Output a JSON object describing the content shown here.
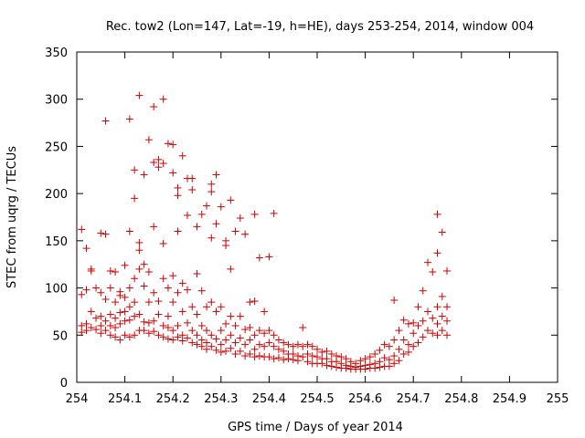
{
  "chart_data": {
    "type": "scatter",
    "title": "Rec. tow2 (Lon=147, Lat=-19, h=HE), days 253-254, 2014, window 004",
    "xlabel": "GPS time / Days of year 2014",
    "ylabel": "STEC from uqrg / TECUs",
    "xlim": [
      254,
      255
    ],
    "ylim": [
      0,
      350
    ],
    "x_ticks": [
      254,
      254.1,
      254.2,
      254.3,
      254.4,
      254.5,
      254.6,
      254.7,
      254.8,
      254.9,
      255
    ],
    "x_tick_labels": [
      "254",
      "254.1",
      "254.2",
      "254.3",
      "254.4",
      "254.5",
      "254.6",
      "254.7",
      "254.8",
      "254.9",
      "255"
    ],
    "y_ticks": [
      0,
      50,
      100,
      150,
      200,
      250,
      300,
      350
    ],
    "y_tick_labels": [
      "0",
      "50",
      "100",
      "150",
      "200",
      "250",
      "300",
      "350"
    ],
    "marker": "+",
    "color": "#cc0000",
    "grid": false,
    "legend": "none",
    "series": [
      {
        "points": [
          [
            254.01,
            162
          ],
          [
            254.01,
            93
          ],
          [
            254.01,
            60
          ],
          [
            254.01,
            53
          ],
          [
            254.02,
            142
          ],
          [
            254.02,
            98
          ],
          [
            254.02,
            62
          ],
          [
            254.02,
            55
          ],
          [
            254.03,
            120
          ],
          [
            254.03,
            118
          ],
          [
            254.03,
            75
          ],
          [
            254.03,
            58
          ],
          [
            254.04,
            100
          ],
          [
            254.04,
            68
          ],
          [
            254.04,
            56
          ],
          [
            254.05,
            158
          ],
          [
            254.05,
            95
          ],
          [
            254.05,
            70
          ],
          [
            254.05,
            60
          ],
          [
            254.05,
            52
          ],
          [
            254.06,
            277
          ],
          [
            254.06,
            157
          ],
          [
            254.06,
            88
          ],
          [
            254.06,
            65
          ],
          [
            254.06,
            55
          ],
          [
            254.07,
            118
          ],
          [
            254.07,
            100
          ],
          [
            254.07,
            72
          ],
          [
            254.07,
            60
          ],
          [
            254.07,
            50
          ],
          [
            254.08,
            117
          ],
          [
            254.08,
            85
          ],
          [
            254.08,
            68
          ],
          [
            254.08,
            58
          ],
          [
            254.08,
            48
          ],
          [
            254.09,
            96
          ],
          [
            254.09,
            92
          ],
          [
            254.09,
            74
          ],
          [
            254.09,
            62
          ],
          [
            254.09,
            45
          ],
          [
            254.1,
            124
          ],
          [
            254.1,
            90
          ],
          [
            254.1,
            75
          ],
          [
            254.1,
            65
          ],
          [
            254.1,
            50
          ],
          [
            254.11,
            279
          ],
          [
            254.11,
            160
          ],
          [
            254.11,
            100
          ],
          [
            254.11,
            80
          ],
          [
            254.11,
            66
          ],
          [
            254.11,
            48
          ],
          [
            254.12,
            225
          ],
          [
            254.12,
            195
          ],
          [
            254.12,
            110
          ],
          [
            254.12,
            85
          ],
          [
            254.12,
            70
          ],
          [
            254.12,
            50
          ],
          [
            254.13,
            304
          ],
          [
            254.13,
            148
          ],
          [
            254.13,
            140
          ],
          [
            254.13,
            120
          ],
          [
            254.13,
            72
          ],
          [
            254.13,
            55
          ],
          [
            254.14,
            220
          ],
          [
            254.14,
            125
          ],
          [
            254.14,
            102
          ],
          [
            254.14,
            64
          ],
          [
            254.14,
            55
          ],
          [
            254.15,
            257
          ],
          [
            254.15,
            117
          ],
          [
            254.15,
            85
          ],
          [
            254.15,
            63
          ],
          [
            254.15,
            52
          ],
          [
            254.16,
            292
          ],
          [
            254.16,
            233
          ],
          [
            254.16,
            165
          ],
          [
            254.16,
            95
          ],
          [
            254.16,
            65
          ],
          [
            254.16,
            54
          ],
          [
            254.17,
            228
          ],
          [
            254.17,
            236
          ],
          [
            254.17,
            86
          ],
          [
            254.17,
            72
          ],
          [
            254.17,
            50
          ],
          [
            254.18,
            300
          ],
          [
            254.18,
            232
          ],
          [
            254.18,
            147
          ],
          [
            254.18,
            110
          ],
          [
            254.18,
            60
          ],
          [
            254.18,
            48
          ],
          [
            254.19,
            253
          ],
          [
            254.19,
            100
          ],
          [
            254.19,
            70
          ],
          [
            254.19,
            58
          ],
          [
            254.19,
            46
          ],
          [
            254.2,
            252
          ],
          [
            254.2,
            222
          ],
          [
            254.2,
            113
          ],
          [
            254.2,
            85
          ],
          [
            254.2,
            55
          ],
          [
            254.2,
            45
          ],
          [
            254.21,
            206
          ],
          [
            254.21,
            198
          ],
          [
            254.21,
            160
          ],
          [
            254.21,
            95
          ],
          [
            254.21,
            60
          ],
          [
            254.21,
            48
          ],
          [
            254.22,
            240
          ],
          [
            254.22,
            105
          ],
          [
            254.22,
            75
          ],
          [
            254.22,
            50
          ],
          [
            254.22,
            44
          ],
          [
            254.23,
            216
          ],
          [
            254.23,
            177
          ],
          [
            254.23,
            98
          ],
          [
            254.23,
            63
          ],
          [
            254.23,
            47
          ],
          [
            254.24,
            216
          ],
          [
            254.24,
            204
          ],
          [
            254.24,
            80
          ],
          [
            254.24,
            55
          ],
          [
            254.24,
            42
          ],
          [
            254.25,
            165
          ],
          [
            254.25,
            115
          ],
          [
            254.25,
            72
          ],
          [
            254.25,
            50
          ],
          [
            254.25,
            40
          ],
          [
            254.26,
            178
          ],
          [
            254.26,
            97
          ],
          [
            254.26,
            60
          ],
          [
            254.26,
            45
          ],
          [
            254.26,
            38
          ],
          [
            254.27,
            187
          ],
          [
            254.27,
            80
          ],
          [
            254.27,
            55
          ],
          [
            254.27,
            42
          ],
          [
            254.27,
            35
          ],
          [
            254.28,
            210
          ],
          [
            254.28,
            202
          ],
          [
            254.28,
            153
          ],
          [
            254.28,
            85
          ],
          [
            254.28,
            50
          ],
          [
            254.28,
            38
          ],
          [
            254.29,
            220
          ],
          [
            254.29,
            168
          ],
          [
            254.29,
            75
          ],
          [
            254.29,
            46
          ],
          [
            254.29,
            34
          ],
          [
            254.3,
            186
          ],
          [
            254.3,
            80
          ],
          [
            254.3,
            55
          ],
          [
            254.3,
            40
          ],
          [
            254.3,
            32
          ],
          [
            254.31,
            150
          ],
          [
            254.31,
            145
          ],
          [
            254.31,
            62
          ],
          [
            254.31,
            45
          ],
          [
            254.31,
            33
          ],
          [
            254.32,
            193
          ],
          [
            254.32,
            120
          ],
          [
            254.32,
            70
          ],
          [
            254.32,
            50
          ],
          [
            254.32,
            36
          ],
          [
            254.33,
            160
          ],
          [
            254.33,
            60
          ],
          [
            254.33,
            42
          ],
          [
            254.33,
            30
          ],
          [
            254.34,
            174
          ],
          [
            254.34,
            70
          ],
          [
            254.34,
            47
          ],
          [
            254.34,
            33
          ],
          [
            254.35,
            157
          ],
          [
            254.35,
            56
          ],
          [
            254.35,
            40
          ],
          [
            254.35,
            28
          ],
          [
            254.36,
            85
          ],
          [
            254.36,
            58
          ],
          [
            254.36,
            45
          ],
          [
            254.36,
            30
          ],
          [
            254.37,
            178
          ],
          [
            254.37,
            86
          ],
          [
            254.37,
            50
          ],
          [
            254.37,
            35
          ],
          [
            254.37,
            27
          ],
          [
            254.38,
            132
          ],
          [
            254.38,
            55
          ],
          [
            254.38,
            40
          ],
          [
            254.38,
            28
          ],
          [
            254.39,
            75
          ],
          [
            254.39,
            52
          ],
          [
            254.39,
            38
          ],
          [
            254.39,
            27
          ],
          [
            254.4,
            133
          ],
          [
            254.4,
            55
          ],
          [
            254.4,
            42
          ],
          [
            254.4,
            27
          ],
          [
            254.41,
            179
          ],
          [
            254.41,
            50
          ],
          [
            254.41,
            38
          ],
          [
            254.41,
            25
          ],
          [
            254.42,
            45
          ],
          [
            254.42,
            35
          ],
          [
            254.42,
            26
          ],
          [
            254.43,
            42
          ],
          [
            254.43,
            33
          ],
          [
            254.43,
            24
          ],
          [
            254.44,
            40
          ],
          [
            254.44,
            30
          ],
          [
            254.44,
            25
          ],
          [
            254.45,
            38
          ],
          [
            254.45,
            30
          ],
          [
            254.45,
            24
          ],
          [
            254.46,
            40
          ],
          [
            254.46,
            28
          ],
          [
            254.46,
            23
          ],
          [
            254.47,
            58
          ],
          [
            254.47,
            38
          ],
          [
            254.47,
            27
          ],
          [
            254.48,
            40
          ],
          [
            254.48,
            30
          ],
          [
            254.48,
            22
          ],
          [
            254.49,
            38
          ],
          [
            254.49,
            28
          ],
          [
            254.49,
            20
          ],
          [
            254.5,
            35
          ],
          [
            254.5,
            27
          ],
          [
            254.5,
            20
          ],
          [
            254.51,
            32
          ],
          [
            254.51,
            25
          ],
          [
            254.51,
            20
          ],
          [
            254.52,
            33
          ],
          [
            254.52,
            25
          ],
          [
            254.52,
            18
          ],
          [
            254.53,
            30
          ],
          [
            254.53,
            22
          ],
          [
            254.53,
            17
          ],
          [
            254.54,
            28
          ],
          [
            254.54,
            22
          ],
          [
            254.54,
            16
          ],
          [
            254.55,
            27
          ],
          [
            254.55,
            20
          ],
          [
            254.55,
            15
          ],
          [
            254.56,
            25
          ],
          [
            254.56,
            18
          ],
          [
            254.56,
            15
          ],
          [
            254.57,
            22
          ],
          [
            254.57,
            17
          ],
          [
            254.57,
            14
          ],
          [
            254.58,
            20
          ],
          [
            254.58,
            16
          ],
          [
            254.58,
            14
          ],
          [
            254.59,
            23
          ],
          [
            254.59,
            17
          ],
          [
            254.59,
            14
          ],
          [
            254.6,
            25
          ],
          [
            254.6,
            18
          ],
          [
            254.6,
            14
          ],
          [
            254.61,
            27
          ],
          [
            254.61,
            19
          ],
          [
            254.61,
            15
          ],
          [
            254.62,
            30
          ],
          [
            254.62,
            20
          ],
          [
            254.62,
            15
          ],
          [
            254.63,
            34
          ],
          [
            254.63,
            22
          ],
          [
            254.63,
            16
          ],
          [
            254.64,
            40
          ],
          [
            254.64,
            26
          ],
          [
            254.64,
            17
          ],
          [
            254.65,
            38
          ],
          [
            254.65,
            24
          ],
          [
            254.65,
            17
          ],
          [
            254.66,
            87
          ],
          [
            254.66,
            45
          ],
          [
            254.66,
            28
          ],
          [
            254.66,
            20
          ],
          [
            254.67,
            55
          ],
          [
            254.67,
            35
          ],
          [
            254.67,
            23
          ],
          [
            254.68,
            66
          ],
          [
            254.68,
            45
          ],
          [
            254.68,
            30
          ],
          [
            254.69,
            62
          ],
          [
            254.69,
            40
          ],
          [
            254.69,
            32
          ],
          [
            254.7,
            63
          ],
          [
            254.7,
            52
          ],
          [
            254.7,
            38
          ],
          [
            254.71,
            80
          ],
          [
            254.71,
            60
          ],
          [
            254.71,
            42
          ],
          [
            254.72,
            97
          ],
          [
            254.72,
            65
          ],
          [
            254.72,
            48
          ],
          [
            254.73,
            127
          ],
          [
            254.73,
            75
          ],
          [
            254.73,
            55
          ],
          [
            254.74,
            117
          ],
          [
            254.74,
            68
          ],
          [
            254.74,
            52
          ],
          [
            254.75,
            178
          ],
          [
            254.75,
            137
          ],
          [
            254.75,
            80
          ],
          [
            254.75,
            62
          ],
          [
            254.75,
            50
          ],
          [
            254.76,
            159
          ],
          [
            254.76,
            91
          ],
          [
            254.76,
            70
          ],
          [
            254.76,
            55
          ],
          [
            254.77,
            118
          ],
          [
            254.77,
            80
          ],
          [
            254.77,
            65
          ],
          [
            254.77,
            50
          ]
        ]
      }
    ]
  }
}
